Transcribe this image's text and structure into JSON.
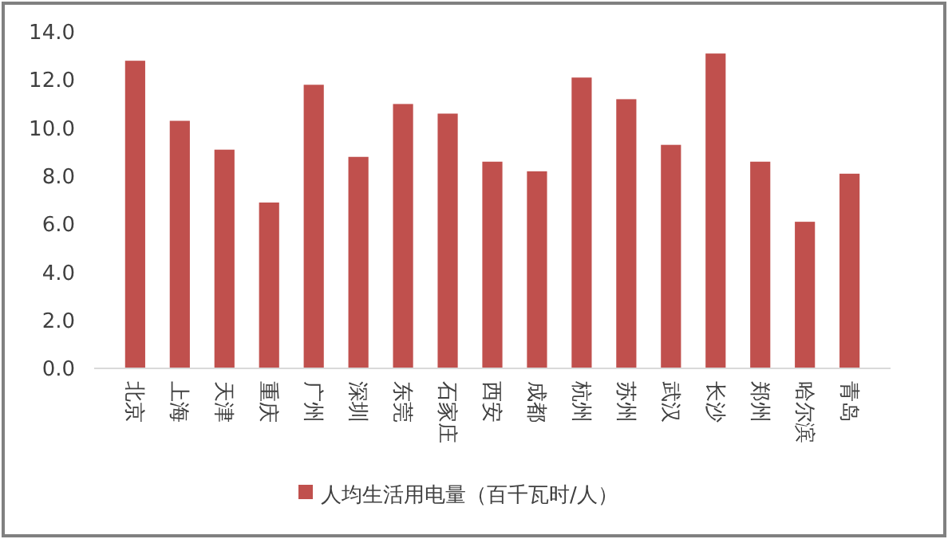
{
  "chart_data": {
    "type": "bar",
    "categories": [
      "北京",
      "上海",
      "天津",
      "重庆",
      "广州",
      "深圳",
      "东莞",
      "石家庄",
      "西安",
      "成都",
      "杭州",
      "苏州",
      "武汉",
      "长沙",
      "郑州",
      "哈尔滨",
      "青岛"
    ],
    "series": [
      {
        "name": "人均生活用电量（百千瓦时/人）",
        "color": "#c0504d",
        "values": [
          12.8,
          10.3,
          9.1,
          6.9,
          11.8,
          8.8,
          11.0,
          10.6,
          8.6,
          8.2,
          12.1,
          11.2,
          9.3,
          13.1,
          8.6,
          6.1,
          8.1
        ]
      }
    ],
    "ylim": [
      0,
      14
    ],
    "yticks": [
      {
        "value": 0,
        "label": "0.0"
      },
      {
        "value": 2,
        "label": "2.0"
      },
      {
        "value": 4,
        "label": "4.0"
      },
      {
        "value": 6,
        "label": "6.0"
      },
      {
        "value": 8,
        "label": "8.0"
      },
      {
        "value": 10,
        "label": "10.0"
      },
      {
        "value": 12,
        "label": "12.0"
      },
      {
        "value": 14,
        "label": "14.0"
      }
    ],
    "grid": false,
    "legend": "bottom"
  }
}
